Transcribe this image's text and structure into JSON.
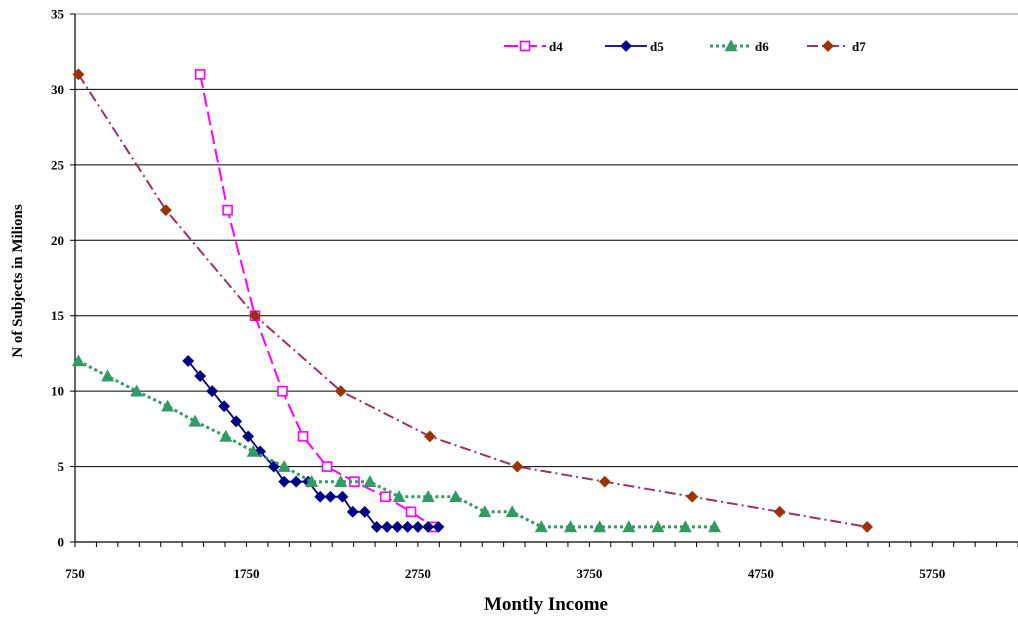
{
  "chart_data": {
    "type": "line",
    "title": "",
    "xlabel": "Montly Income",
    "ylabel": "N of Subjects in Milions",
    "xlim": [
      750,
      6250
    ],
    "ylim": [
      0,
      35
    ],
    "x_ticks": [
      750,
      1750,
      2750,
      3750,
      4750,
      5750
    ],
    "y_ticks": [
      0,
      5,
      10,
      15,
      20,
      25,
      30,
      35
    ],
    "grid": "horizontal",
    "legend_position": "top-right",
    "series": [
      {
        "name": "d4",
        "color": "#ff00ff",
        "dash": "long-dash",
        "marker": "square",
        "points": [
          [
            1480,
            31
          ],
          [
            1640,
            22
          ],
          [
            1800,
            15
          ],
          [
            1960,
            10
          ],
          [
            2080,
            7
          ],
          [
            2220,
            5
          ],
          [
            2380,
            4
          ],
          [
            2560,
            3
          ],
          [
            2710,
            2
          ],
          [
            2840,
            1
          ]
        ]
      },
      {
        "name": "d5",
        "color": "#000080",
        "dash": "solid",
        "marker": "diamond",
        "points": [
          [
            1410,
            12
          ],
          [
            1480,
            11
          ],
          [
            1550,
            10
          ],
          [
            1620,
            9
          ],
          [
            1690,
            8
          ],
          [
            1760,
            7
          ],
          [
            1830,
            6
          ],
          [
            1910,
            5
          ],
          [
            1970,
            4
          ],
          [
            2040,
            4
          ],
          [
            2110,
            4
          ],
          [
            2180,
            3
          ],
          [
            2240,
            3
          ],
          [
            2310,
            3
          ],
          [
            2370,
            2
          ],
          [
            2440,
            2
          ],
          [
            2510,
            1
          ],
          [
            2570,
            1
          ],
          [
            2630,
            1
          ],
          [
            2690,
            1
          ],
          [
            2750,
            1
          ],
          [
            2810,
            1
          ],
          [
            2870,
            1
          ]
        ]
      },
      {
        "name": "d6",
        "color": "#339966",
        "dash": "dotted",
        "marker": "triangle",
        "points": [
          [
            770,
            12
          ],
          [
            940,
            11
          ],
          [
            1110,
            10
          ],
          [
            1290,
            9
          ],
          [
            1450,
            8
          ],
          [
            1630,
            7
          ],
          [
            1790,
            6
          ],
          [
            1970,
            5
          ],
          [
            2130,
            4
          ],
          [
            2300,
            4
          ],
          [
            2470,
            4
          ],
          [
            2640,
            3
          ],
          [
            2810,
            3
          ],
          [
            2970,
            3
          ],
          [
            3140,
            2
          ],
          [
            3300,
            2
          ],
          [
            3470,
            1
          ],
          [
            3640,
            1
          ],
          [
            3810,
            1
          ],
          [
            3980,
            1
          ],
          [
            4150,
            1
          ],
          [
            4310,
            1
          ],
          [
            4480,
            1
          ]
        ]
      },
      {
        "name": "d7",
        "color": "#993366",
        "dash": "dash-dot",
        "marker": "diamond",
        "markerColor": "#993300",
        "points": [
          [
            770,
            31
          ],
          [
            1280,
            22
          ],
          [
            1800,
            15
          ],
          [
            2300,
            10
          ],
          [
            2820,
            7
          ],
          [
            3330,
            5
          ],
          [
            3840,
            4
          ],
          [
            4350,
            3
          ],
          [
            4860,
            2
          ],
          [
            5370,
            1
          ]
        ]
      }
    ]
  }
}
